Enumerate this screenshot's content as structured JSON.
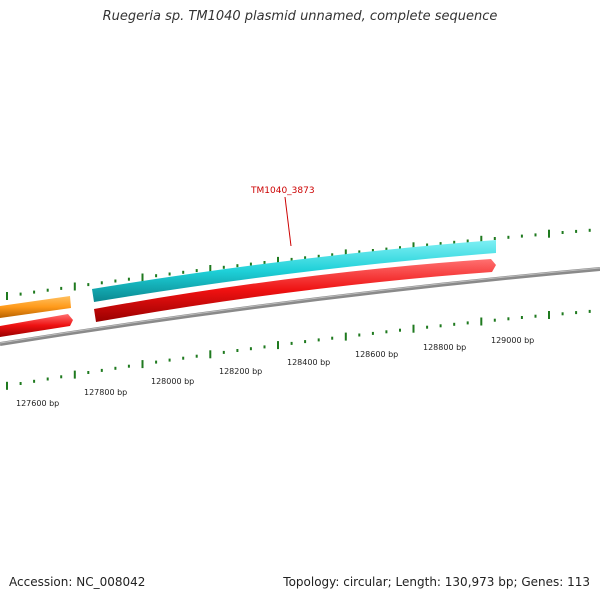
{
  "title": "Ruegeria sp. TM1040 plasmid unnamed, complete sequence",
  "footer": {
    "accession": "Accession: NC_008042",
    "summary": "Topology: circular; Length: 130,973 bp; Genes: 113"
  },
  "colors": {
    "tick": "#1f7a1f",
    "backbone": "#7a7a7a",
    "orange_gene": "#ff9a1a",
    "cyan_gene": "#1ed0d8",
    "red_gene": "#ee1111",
    "gene_label": "#cc0000"
  },
  "gene_label": "TM1040_3873",
  "scale_labels": [
    "127600 bp",
    "127800 bp",
    "128000 bp",
    "128200 bp",
    "128400 bp",
    "128600 bp",
    "128800 bp",
    "129000 bp"
  ],
  "genes": [
    {
      "name": "orange-gene",
      "strand": "plus",
      "color": "orange_gene"
    },
    {
      "name": "cyan-gene",
      "strand": "plus",
      "color": "cyan_gene"
    },
    {
      "name": "red-gene-left",
      "strand": "minus",
      "color": "red_gene"
    },
    {
      "name": "red-gene-right",
      "strand": "minus",
      "color": "red_gene"
    }
  ]
}
